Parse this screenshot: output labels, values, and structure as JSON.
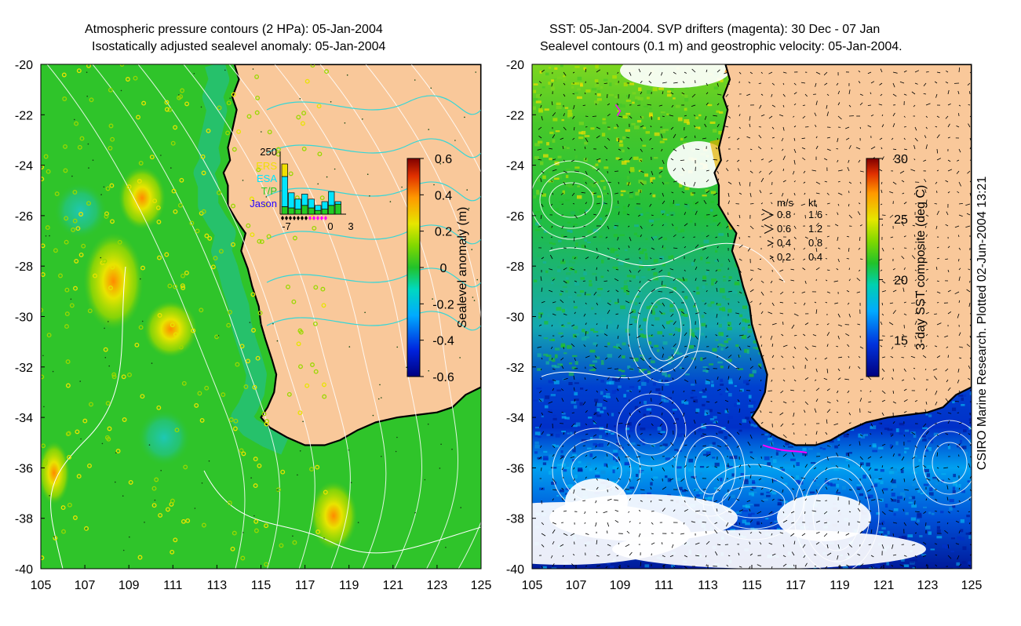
{
  "titles": {
    "left_line1": "Atmospheric pressure contours (2 HPa): 05-Jan-2004",
    "left_line2": "Isostatically adjusted sealevel anomaly: 05-Jan-2004",
    "right_line1": "SST: 05-Jan-2004. SVP drifters (magenta): 30 Dec - 07 Jan",
    "right_line2": "Sealevel contours (0.1 m) and geostrophic velocity: 05-Jan-2004."
  },
  "credit": "CSIRO Marine Research. Plotted 02-Jun-2004 13:21",
  "colors": {
    "land": "#f9c89a",
    "ocean_green": "#2fc42a",
    "coast": "#000000",
    "contour_cyan": "#37d6d6",
    "contour_white": "#ffffff",
    "hist_cyan": "#00e5ff",
    "hist_green": "#22cc22",
    "hist_yellow": "#f0e000",
    "label_ers": "#f0e000",
    "label_esa": "#00e5ff",
    "label_tp": "#22cc22",
    "label_jason": "#2200ff"
  },
  "chart_data": [
    {
      "type": "heatmap",
      "title": "Isostatically adjusted sealevel anomaly: 05-Jan-2004",
      "x_ticks": [
        "105",
        "107",
        "109",
        "111",
        "113",
        "115",
        "117",
        "119",
        "121",
        "123",
        "125"
      ],
      "y_ticks": [
        "-20",
        "-22",
        "-24",
        "-26",
        "-28",
        "-30",
        "-32",
        "-34",
        "-36",
        "-38",
        "-40"
      ],
      "xlim": [
        105,
        125
      ],
      "ylim": [
        -40,
        -20
      ],
      "colorbar": {
        "label": "Sealevel anomaly (m)",
        "ticks": [
          "0.6",
          "0.4",
          "0.2",
          "0",
          "-0.2",
          "-0.4",
          "-0.6"
        ],
        "range": [
          -0.6,
          0.6
        ]
      },
      "blobs": [
        {
          "lon": 109.6,
          "lat": -25.3,
          "value": 0.25
        },
        {
          "lon": 108.3,
          "lat": -28.6,
          "value": 0.22
        },
        {
          "lon": 110.9,
          "lat": -30.5,
          "value": 0.28
        },
        {
          "lon": 118.3,
          "lat": -37.9,
          "value": 0.27
        },
        {
          "lon": 105.6,
          "lat": -36.2,
          "value": 0.15
        },
        {
          "lon": 106.8,
          "lat": -25.8,
          "value": -0.06
        },
        {
          "lon": 110.6,
          "lat": -34.8,
          "value": -0.1
        }
      ],
      "inset": {
        "ymax_label": "250",
        "x_ticks": [
          "-7",
          "0",
          "3"
        ],
        "legend": [
          "ERS",
          "ESA",
          "T/P",
          "Jason"
        ],
        "bars_cyan": [
          120,
          60,
          40,
          45,
          35,
          20,
          30,
          55,
          10
        ],
        "bars_green": [
          30,
          25,
          20,
          35,
          25,
          15,
          20,
          35,
          40
        ],
        "bars_yellow": [
          50,
          0,
          0,
          0,
          0,
          0,
          0,
          0,
          0
        ]
      }
    },
    {
      "type": "heatmap",
      "title": "SST: 05-Jan-2004",
      "x_ticks": [
        "105",
        "107",
        "109",
        "111",
        "113",
        "115",
        "117",
        "119",
        "121",
        "123",
        "125"
      ],
      "y_ticks": [
        "-20",
        "-22",
        "-24",
        "-26",
        "-28",
        "-30",
        "-32",
        "-34",
        "-36",
        "-38",
        "-40"
      ],
      "xlim": [
        105,
        125
      ],
      "ylim": [
        -40,
        -20
      ],
      "colorbar": {
        "label": "3-day SST composite (deg C)",
        "ticks": [
          "30",
          "25",
          "20",
          "15"
        ],
        "range": [
          12,
          30
        ]
      },
      "velocity_legend": {
        "headers": [
          "m/s",
          "kt"
        ],
        "rows": [
          {
            "ms": "0.8",
            "kt": "1.6"
          },
          {
            "ms": "0.6",
            "kt": "1.2"
          },
          {
            "ms": "0.4",
            "kt": "0.8"
          },
          {
            "ms": "0.2",
            "kt": "0.4"
          }
        ]
      }
    }
  ]
}
